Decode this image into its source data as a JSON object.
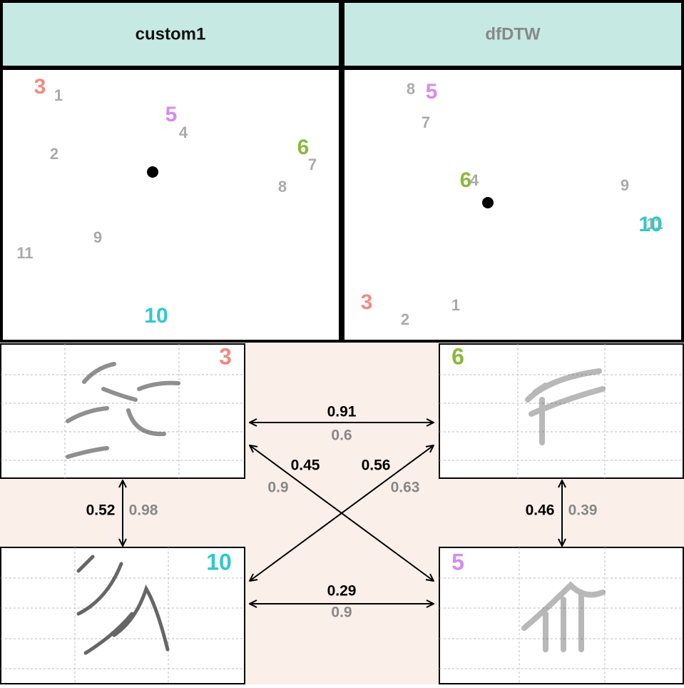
{
  "panels": [
    {
      "title": "custom1",
      "points": [
        3,
        1,
        5,
        4,
        2,
        6,
        7,
        8,
        9,
        11,
        10
      ]
    },
    {
      "title": "dfDTW",
      "points": [
        8,
        5,
        7,
        6,
        4,
        9,
        11,
        10,
        3,
        2,
        1
      ]
    }
  ],
  "clips": [
    3,
    6,
    10,
    5
  ],
  "links": [
    {
      "primary": 0.91,
      "secondary": 0.6
    },
    {
      "primary": 0.52,
      "secondary": 0.98
    },
    {
      "primary": 0.46,
      "secondary": 0.39
    },
    {
      "primary": 0.45,
      "secondary": 0.9
    },
    {
      "primary": 0.56,
      "secondary": 0.63
    },
    {
      "primary": 0.29,
      "secondary": 0.9
    }
  ]
}
